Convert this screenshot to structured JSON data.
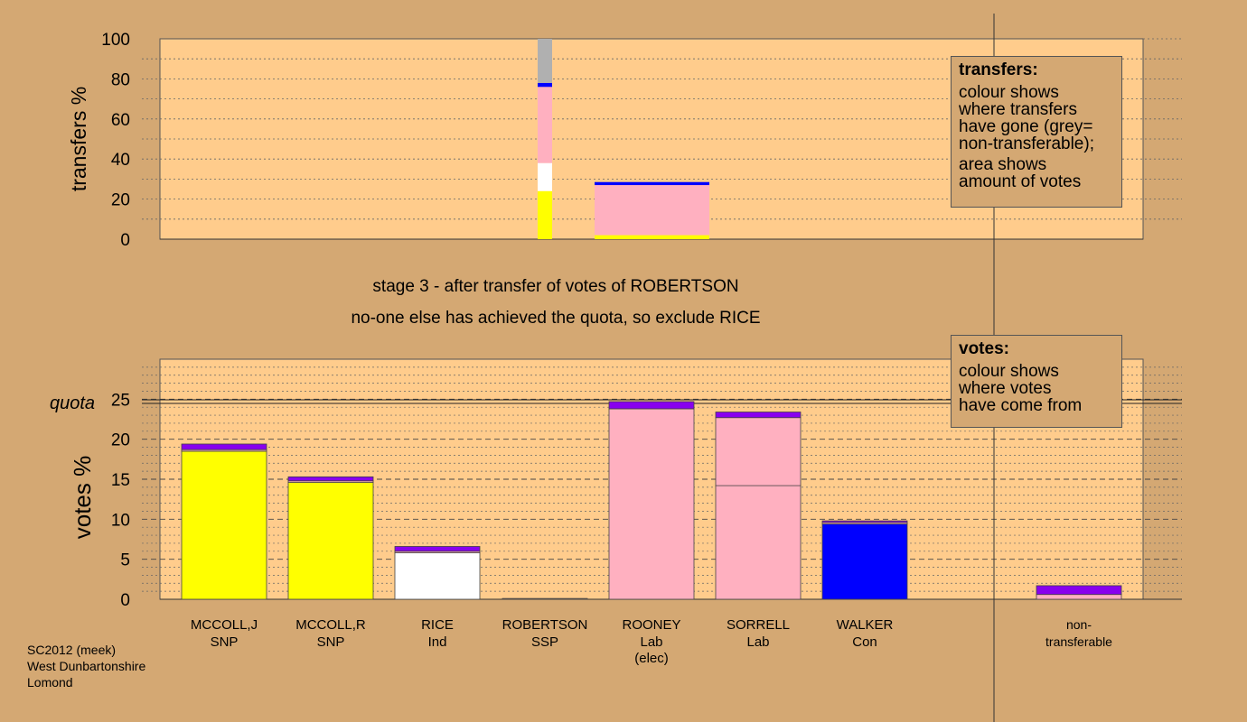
{
  "chart_data": [
    {
      "type": "bar",
      "name": "transfers",
      "ylabel": "transfers %",
      "ylim": [
        0,
        100
      ],
      "yticks": [
        0,
        20,
        40,
        60,
        80,
        100
      ],
      "bars": [
        {
          "candidate": "ROBERTSON",
          "segments": [
            {
              "color": "#ffff00",
              "from": 0,
              "to": 24
            },
            {
              "color": "#ffffff",
              "from": 24,
              "to": 38
            },
            {
              "color": "#ffb0c0",
              "from": 38,
              "to": 76
            },
            {
              "color": "#0000ff",
              "from": 76,
              "to": 78
            },
            {
              "color": "#b0b0b0",
              "from": 78,
              "to": 100
            }
          ]
        },
        {
          "candidate": "ROONEY",
          "segments": [
            {
              "color": "#ffff00",
              "from": 0,
              "to": 2
            },
            {
              "color": "#ffb0c0",
              "from": 2,
              "to": 27
            },
            {
              "color": "#0000ff",
              "from": 27,
              "to": 28.5
            }
          ]
        }
      ]
    },
    {
      "type": "bar",
      "name": "votes",
      "ylabel": "votes %",
      "ylim": [
        0,
        30
      ],
      "yticks": [
        0,
        5,
        10,
        15,
        20,
        25
      ],
      "quota": 24.7,
      "quota_label": "quota",
      "candidates": [
        {
          "name": "MCCOLL,J",
          "party": "SNP",
          "note": "",
          "segments": [
            {
              "color": "#ffff00",
              "from": 0,
              "to": 18.5
            },
            {
              "color": "#ffb0c0",
              "from": 18.5,
              "to": 18.7
            },
            {
              "color": "#8800ee",
              "from": 18.7,
              "to": 19.4
            }
          ]
        },
        {
          "name": "MCCOLL,R",
          "party": "SNP",
          "note": "",
          "segments": [
            {
              "color": "#ffff00",
              "from": 0,
              "to": 14.6
            },
            {
              "color": "#ffb0c0",
              "from": 14.6,
              "to": 14.8
            },
            {
              "color": "#8800ee",
              "from": 14.8,
              "to": 15.3
            }
          ]
        },
        {
          "name": "RICE",
          "party": "Ind",
          "note": "",
          "segments": [
            {
              "color": "#ffffff",
              "from": 0,
              "to": 5.8
            },
            {
              "color": "#ffb0c0",
              "from": 5.8,
              "to": 6.0
            },
            {
              "color": "#8800ee",
              "from": 6.0,
              "to": 6.6
            }
          ]
        },
        {
          "name": "ROBERTSON",
          "party": "SSP",
          "note": "",
          "segments": [
            {
              "color": "#d4a873",
              "from": 0,
              "to": 0.1
            }
          ]
        },
        {
          "name": "ROONEY",
          "party": "Lab",
          "note": "(elec)",
          "segments": [
            {
              "color": "#ffb0c0",
              "from": 0,
              "to": 23.8
            },
            {
              "color": "#8800ee",
              "from": 23.8,
              "to": 24.7
            }
          ]
        },
        {
          "name": "SORRELL",
          "party": "Lab",
          "note": "",
          "segments": [
            {
              "color": "#ffb0c0",
              "from": 0,
              "to": 14.2
            },
            {
              "color": "#ffb0c0",
              "from": 14.2,
              "to": 22.7
            },
            {
              "color": "#8800ee",
              "from": 22.7,
              "to": 23.4
            }
          ]
        },
        {
          "name": "WALKER",
          "party": "Con",
          "note": "",
          "segments": [
            {
              "color": "#0000ff",
              "from": 0,
              "to": 9.4
            },
            {
              "color": "#ffb0c0",
              "from": 9.4,
              "to": 9.6
            },
            {
              "color": "#8800ee",
              "from": 9.6,
              "to": 9.8
            }
          ]
        },
        {
          "name": "non-",
          "party": "transferable",
          "note": "",
          "segments": [
            {
              "color": "#ffb0c0",
              "from": 0,
              "to": 0.6
            },
            {
              "color": "#8800ee",
              "from": 0.6,
              "to": 1.7
            }
          ]
        }
      ]
    }
  ],
  "titles": {
    "line1": "stage 3 - after transfer of votes of ROBERTSON",
    "line2": "no-one else has achieved the quota, so exclude RICE"
  },
  "legend_transfers": {
    "heading": "transfers:",
    "p1": [
      "colour shows",
      "where transfers",
      "have gone (grey=",
      "non-transferable);"
    ],
    "p2": [
      "area shows",
      "amount of votes"
    ]
  },
  "legend_votes": {
    "heading": "votes:",
    "p1": [
      "colour shows",
      "where votes",
      "have come from"
    ]
  },
  "footer": [
    "SC2012 (meek)",
    "West Dunbartonshire",
    "Lomond"
  ],
  "colors": {
    "background": "#d4a873",
    "plot": "#ffcc8c",
    "snp": "#ffff00",
    "ind": "#ffffff",
    "lab": "#ffb0c0",
    "con": "#0000ff",
    "transfers_in": "#8800ee",
    "non_transferable": "#b0b0b0"
  }
}
